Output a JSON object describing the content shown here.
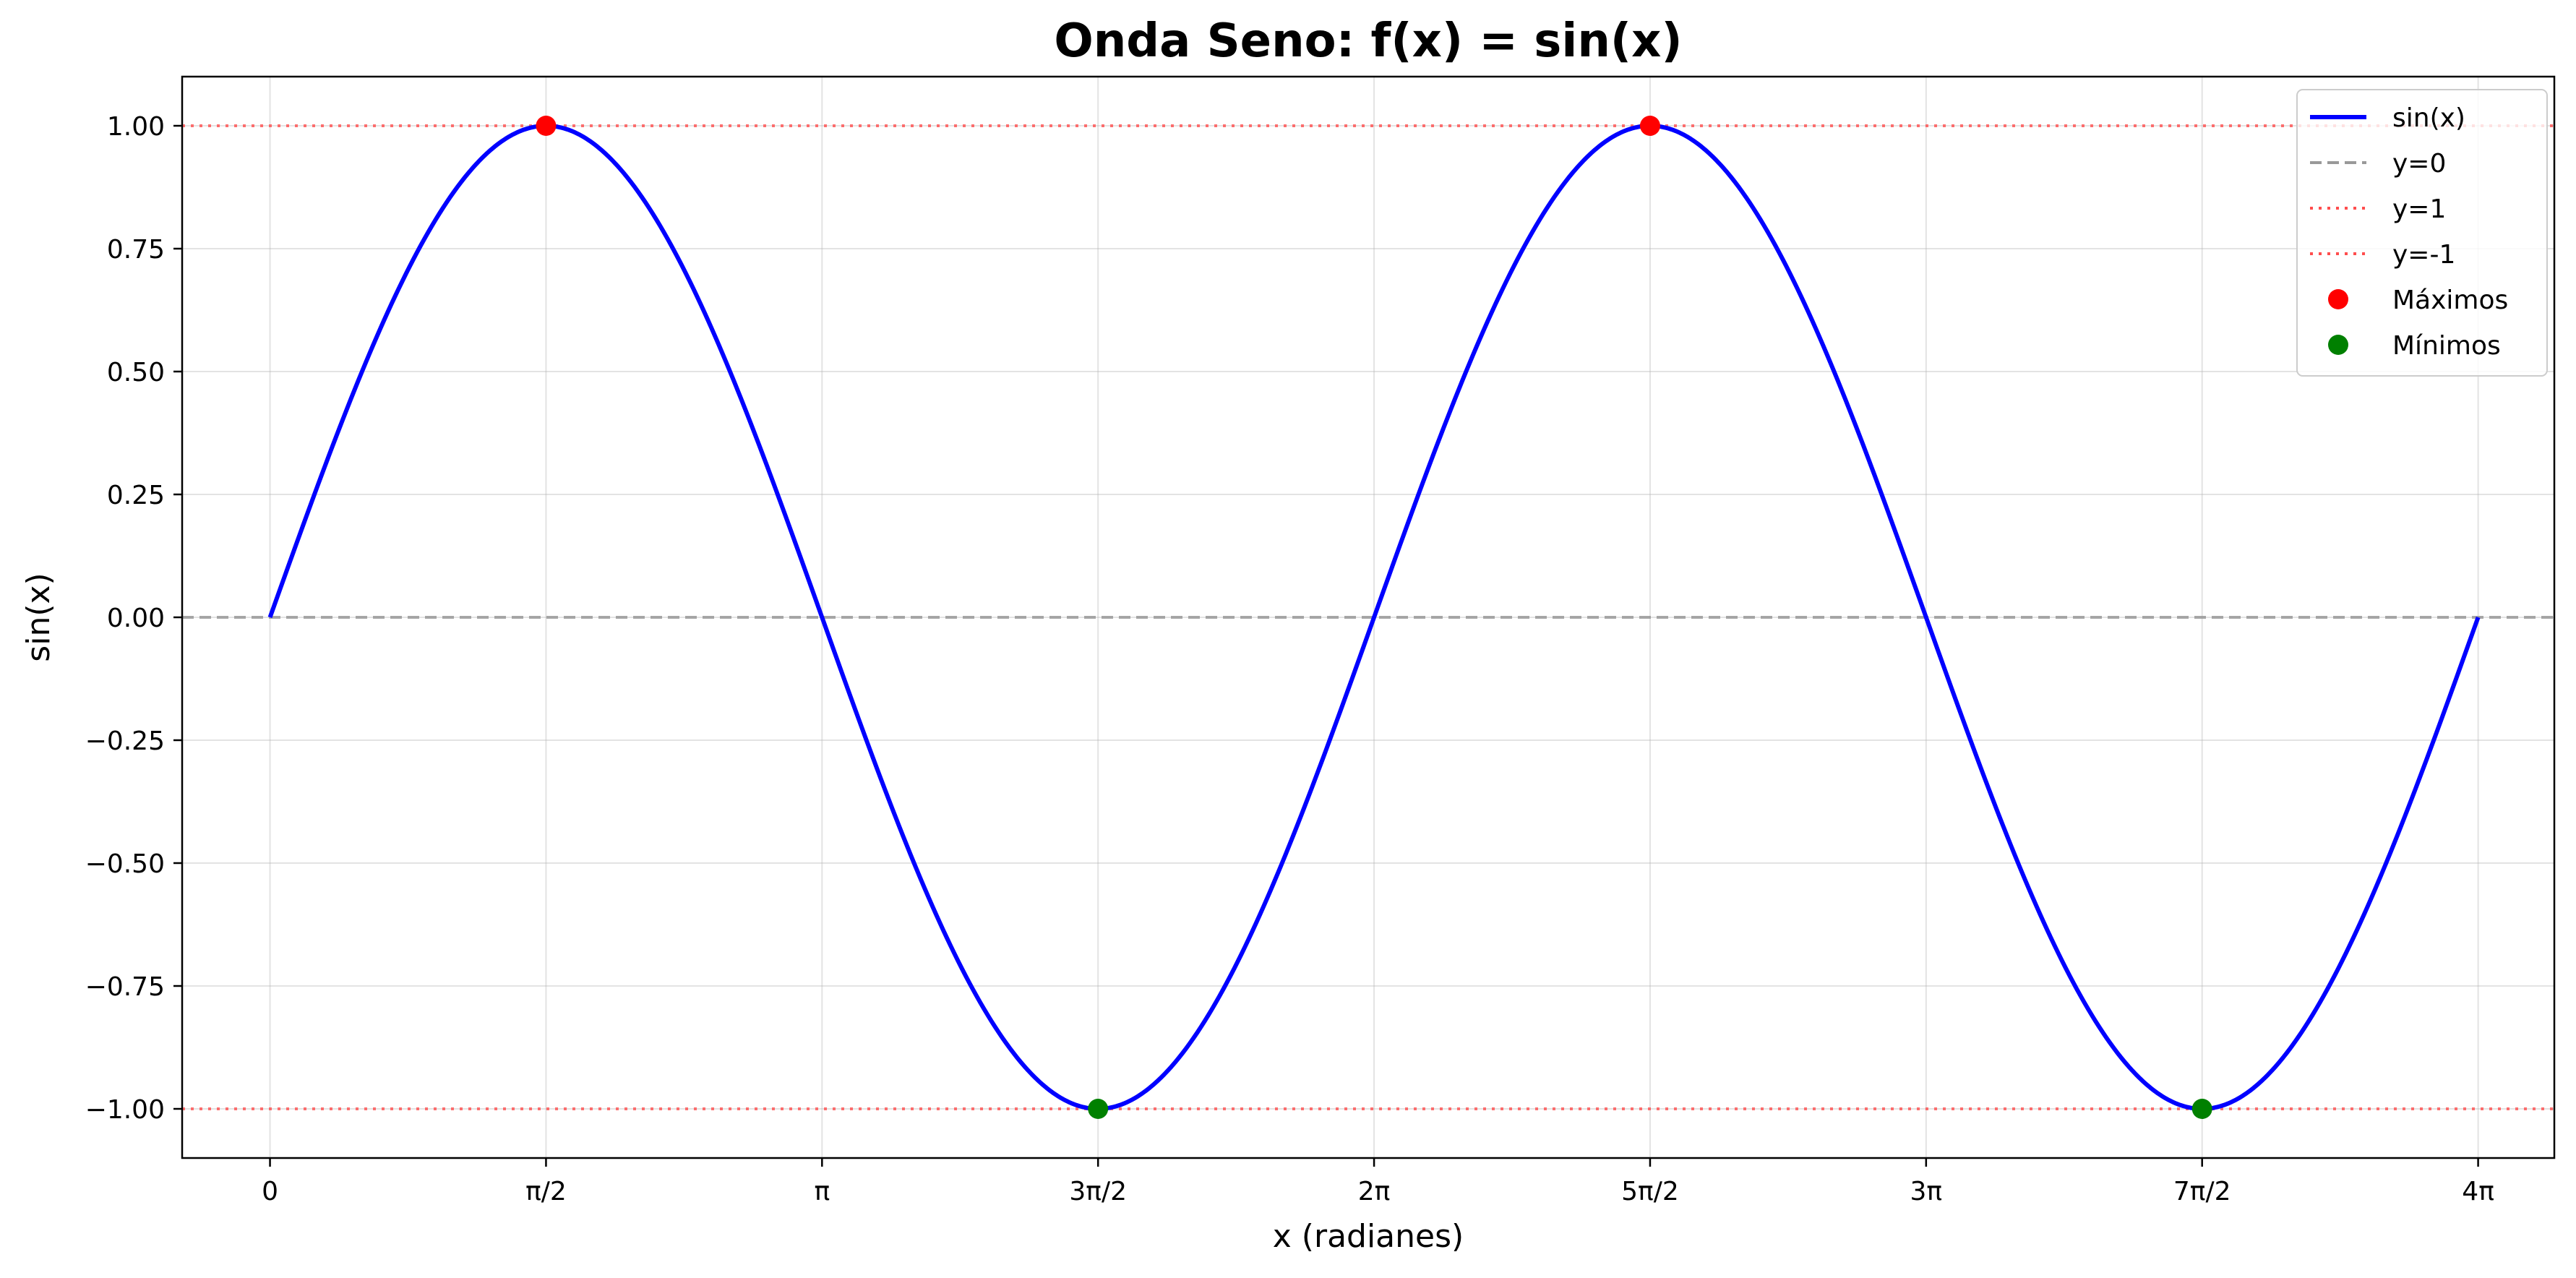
{
  "chart_data": {
    "type": "line",
    "title": "Onda Seno: f(x) = sin(x)",
    "xlabel": "x (radianes)",
    "ylabel": "sin(x)",
    "xlim": [
      -0.5,
      13.0
    ],
    "ylim": [
      -1.1,
      1.1
    ],
    "grid": true,
    "legend_position": "top-right",
    "x_ticks": [
      {
        "value": 0,
        "label": "0"
      },
      {
        "value": 1.5708,
        "label": "π/2"
      },
      {
        "value": 3.1416,
        "label": "π"
      },
      {
        "value": 4.7124,
        "label": "3π/2"
      },
      {
        "value": 6.2832,
        "label": "2π"
      },
      {
        "value": 7.854,
        "label": "5π/2"
      },
      {
        "value": 9.4248,
        "label": "3π"
      },
      {
        "value": 10.9956,
        "label": "7π/2"
      },
      {
        "value": 12.5664,
        "label": "4π"
      }
    ],
    "y_ticks": [
      {
        "value": 1.0,
        "label": "1.00"
      },
      {
        "value": 0.75,
        "label": "0.75"
      },
      {
        "value": 0.5,
        "label": "0.50"
      },
      {
        "value": 0.25,
        "label": "0.25"
      },
      {
        "value": 0.0,
        "label": "0.00"
      },
      {
        "value": -0.25,
        "label": "−0.25"
      },
      {
        "value": -0.5,
        "label": "−0.50"
      },
      {
        "value": -0.75,
        "label": "−0.75"
      },
      {
        "value": -1.0,
        "label": "−1.00"
      }
    ],
    "series": [
      {
        "name": "sin(x)",
        "kind": "line",
        "function": "sin",
        "x_range": [
          0,
          12.5664
        ],
        "color": "#0000ff",
        "style": "solid"
      },
      {
        "name": "y=0",
        "kind": "hline",
        "y": 0,
        "color": "#999999",
        "style": "dashed"
      },
      {
        "name": "y=1",
        "kind": "hline",
        "y": 1,
        "color": "#ff4d4d",
        "style": "dotted"
      },
      {
        "name": "y=-1",
        "kind": "hline",
        "y": -1,
        "color": "#ff4d4d",
        "style": "dotted"
      },
      {
        "name": "Máximos",
        "kind": "scatter",
        "x": [
          1.5708,
          7.854
        ],
        "y": [
          1,
          1
        ],
        "color": "#ff0000"
      },
      {
        "name": "Mínimos",
        "kind": "scatter",
        "x": [
          4.7124,
          10.9956
        ],
        "y": [
          -1,
          -1
        ],
        "color": "#008000"
      }
    ]
  }
}
